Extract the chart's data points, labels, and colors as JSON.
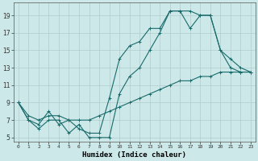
{
  "xlabel": "Humidex (Indice chaleur)",
  "background_color": "#cce8e8",
  "grid_color": "#b0cccc",
  "line_color": "#1a6b6b",
  "xlim": [
    -0.5,
    23.5
  ],
  "ylim": [
    4.5,
    20.5
  ],
  "xticks": [
    0,
    1,
    2,
    3,
    4,
    5,
    6,
    7,
    8,
    9,
    10,
    11,
    12,
    13,
    14,
    15,
    16,
    17,
    18,
    19,
    20,
    21,
    22,
    23
  ],
  "yticks": [
    5,
    7,
    9,
    11,
    13,
    15,
    17,
    19
  ],
  "series": [
    {
      "x": [
        0,
        1,
        2,
        3,
        4,
        5,
        6,
        7,
        8,
        9,
        10,
        11,
        12,
        13,
        14,
        15,
        16,
        17,
        18,
        19,
        20,
        21,
        22,
        23
      ],
      "y": [
        9,
        7,
        6.5,
        8,
        6.5,
        7,
        6,
        5.5,
        5.5,
        9.5,
        14,
        15.5,
        16,
        17.5,
        17.5,
        19.5,
        19.5,
        17.5,
        19,
        19,
        15,
        14,
        13,
        12.5
      ]
    },
    {
      "x": [
        0,
        1,
        2,
        3,
        4,
        5,
        6,
        7,
        8,
        9,
        10,
        11,
        12,
        13,
        14,
        15,
        16,
        17,
        18,
        19,
        20,
        21,
        22,
        23
      ],
      "y": [
        9,
        7,
        6,
        7,
        7,
        5.5,
        6.5,
        5,
        5,
        5,
        10,
        12,
        13,
        15,
        17,
        19.5,
        19.5,
        19.5,
        19,
        19,
        15,
        13,
        12.5,
        12.5
      ]
    },
    {
      "x": [
        0,
        1,
        2,
        3,
        4,
        5,
        6,
        7,
        8,
        9,
        10,
        11,
        12,
        13,
        14,
        15,
        16,
        17,
        18,
        19,
        20,
        21,
        22,
        23
      ],
      "y": [
        9,
        7.5,
        7,
        7.5,
        7.5,
        7,
        7,
        7,
        7.5,
        8,
        8.5,
        9,
        9.5,
        10,
        10.5,
        11,
        11.5,
        11.5,
        12,
        12,
        12.5,
        12.5,
        12.5,
        12.5
      ]
    }
  ]
}
